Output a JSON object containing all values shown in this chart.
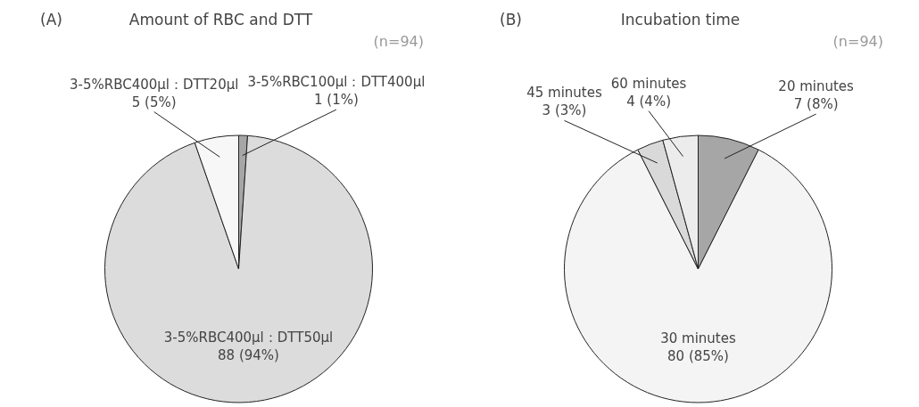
{
  "chart_data": [
    {
      "type": "pie",
      "title": "Amount of RBC and DTT",
      "annotations": [
        "(A)",
        "(n=94)"
      ],
      "categories": [
        "3-5%RBC100µl：DTT400µl",
        "3-5%RBC400µl：DTT50µl",
        "3-5%RBC400µl：DTT20µl"
      ],
      "values": [
        1,
        88,
        5
      ],
      "value_labels": [
        "1 (1%)",
        "88 (94%)",
        "5 (5%)"
      ],
      "colors": [
        "#a6a6a6",
        "#dcdcdc",
        "#f7f7f7"
      ]
    },
    {
      "type": "pie",
      "title": "Incubation time",
      "annotations": [
        "(B)",
        "(n=94)"
      ],
      "categories": [
        "20 minutes",
        "30 minutes",
        "45 minutes",
        "60 minutes"
      ],
      "values": [
        7,
        80,
        3,
        4
      ],
      "value_labels": [
        "7 (8%)",
        "80 (85%)",
        "3 (3%)",
        "4 (4%)"
      ],
      "colors": [
        "#a6a6a6",
        "#f4f4f4",
        "#d9d9d9",
        "#ececec"
      ]
    }
  ]
}
